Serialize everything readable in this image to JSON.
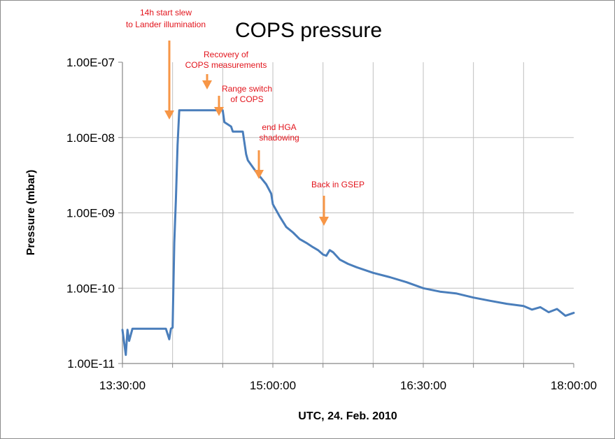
{
  "chart_data": {
    "type": "line",
    "title": "COPS pressure",
    "xlabel": "UTC, 24. Feb. 2010",
    "ylabel": "Pressure (mbar)",
    "y_scale": "log",
    "ylim": [
      1e-11,
      1e-07
    ],
    "xlim": [
      "13:30:00",
      "18:00:00"
    ],
    "x_ticks": [
      "13:30:00",
      "15:00:00",
      "16:30:00",
      "18:00:00"
    ],
    "y_ticks": [
      "1.00E-11",
      "1.00E-10",
      "1.00E-09",
      "1.00E-08",
      "1.00E-07"
    ],
    "grid": true,
    "legend": "none",
    "line_color": "#4a7ebb",
    "annotation_color": "#e2141c",
    "arrow_color": "#f79646",
    "series": [
      {
        "x": [
          "13:30",
          "13:32",
          "13:33",
          "13:34",
          "13:36",
          "13:40",
          "13:45",
          "13:50",
          "13:56",
          "13:58",
          "13:59",
          "14:00",
          "14:01",
          "14:02",
          "14:03",
          "14:04",
          "14:05",
          "14:06",
          "14:08",
          "14:10",
          "14:15",
          "14:20",
          "14:25",
          "14:30",
          "14:31",
          "14:35",
          "14:36",
          "14:40",
          "14:42",
          "14:44",
          "14:45",
          "14:50",
          "14:53",
          "14:56",
          "14:59",
          "15:00",
          "15:04",
          "15:08",
          "15:12",
          "15:16",
          "15:20",
          "15:24",
          "15:27",
          "15:30",
          "15:32",
          "15:34",
          "15:36",
          "15:40",
          "15:45",
          "15:50",
          "16:00",
          "16:10",
          "16:20",
          "16:30",
          "16:40",
          "16:50",
          "17:00",
          "17:10",
          "17:20",
          "17:30",
          "17:35",
          "17:40",
          "17:45",
          "17:50",
          "17:55",
          "18:00"
        ],
        "y": [
          2.8e-11,
          1.3e-11,
          2.8e-11,
          2e-11,
          2.9e-11,
          2.9e-11,
          2.9e-11,
          2.9e-11,
          2.9e-11,
          2.1e-11,
          2.9e-11,
          3e-11,
          4e-10,
          1.5e-09,
          8e-09,
          2.3e-08,
          2.3e-08,
          2.3e-08,
          2.3e-08,
          2.3e-08,
          2.3e-08,
          2.3e-08,
          2.3e-08,
          2.3e-08,
          1.6e-08,
          1.4e-08,
          1.2e-08,
          1.2e-08,
          1.2e-08,
          6e-09,
          5e-09,
          3.5e-09,
          2.9e-09,
          2.4e-09,
          1.8e-09,
          1.3e-09,
          9e-10,
          6.5e-10,
          5.5e-10,
          4.5e-10,
          4e-10,
          3.5e-10,
          3.2e-10,
          2.8e-10,
          2.7e-10,
          3.2e-10,
          3e-10,
          2.4e-10,
          2.1e-10,
          1.9e-10,
          1.6e-10,
          1.4e-10,
          1.2e-10,
          1e-10,
          9e-11,
          8.5e-11,
          7.5e-11,
          6.8e-11,
          6.2e-11,
          5.8e-11,
          5.2e-11,
          5.6e-11,
          4.8e-11,
          5.3e-11,
          4.3e-11,
          4.7e-11
        ]
      }
    ],
    "annotations": [
      {
        "lines": [
          "14h start slew",
          "to Lander illumination"
        ],
        "x": "14:00"
      },
      {
        "lines": [
          "Recovery of",
          "COPS measurements"
        ],
        "x": "14:36"
      },
      {
        "lines": [
          "Range switch",
          "of COPS"
        ],
        "x": "14:45"
      },
      {
        "lines": [
          "end HGA",
          "shadowing"
        ],
        "x": "14:47"
      },
      {
        "lines": [
          "Back in GSEP"
        ],
        "x": "15:33"
      }
    ]
  }
}
